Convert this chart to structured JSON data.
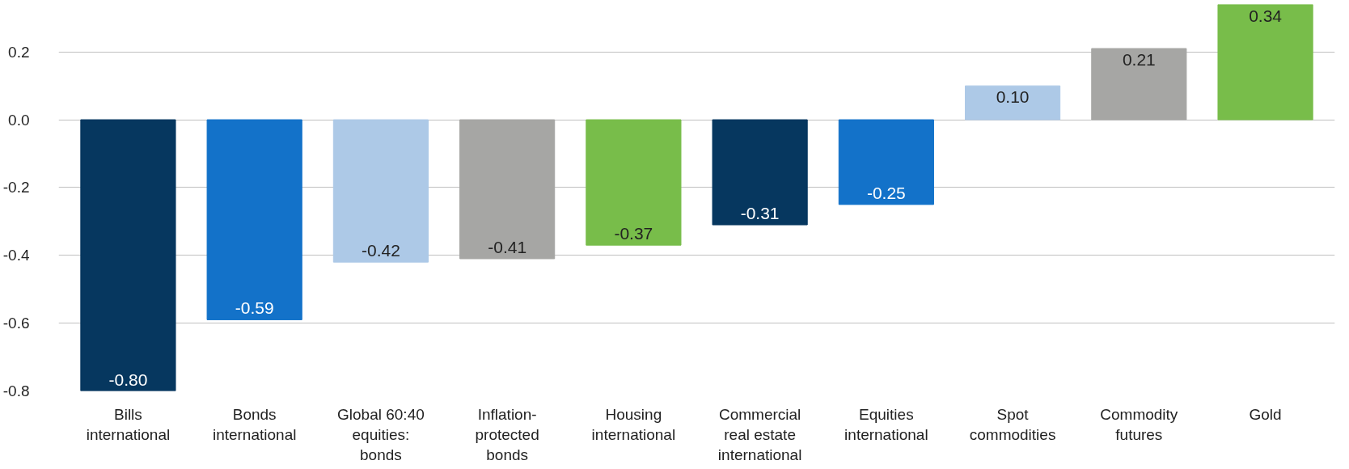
{
  "chart_data": {
    "type": "bar",
    "categories": [
      "Bills international",
      "Bonds international",
      "Global 60:40 equities: bonds",
      "Inflation-protected bonds",
      "Housing international",
      "Commercial real estate international",
      "Equities international",
      "Spot commodities",
      "Commodity futures",
      "Gold"
    ],
    "values": [
      -0.8,
      -0.59,
      -0.42,
      -0.41,
      -0.37,
      -0.31,
      -0.25,
      0.1,
      0.21,
      0.34
    ],
    "colors": [
      "#06375f",
      "#1372c9",
      "#adc9e7",
      "#a6a6a4",
      "#78bd4a",
      "#06375f",
      "#1372c9",
      "#adc9e7",
      "#a6a6a4",
      "#78bd4a"
    ],
    "ylim": [
      -0.8,
      0.34
    ],
    "yticks": [
      {
        "value": -0.8,
        "label": "-0.8"
      },
      {
        "value": -0.6,
        "label": "-0.6"
      },
      {
        "value": -0.4,
        "label": "-0.4"
      },
      {
        "value": -0.2,
        "label": "-0.2"
      },
      {
        "value": 0,
        "label": "0.0"
      },
      {
        "value": 0.2,
        "label": "0.2"
      }
    ],
    "value_labels": [
      "-0.80",
      "-0.59",
      "-0.42",
      "-0.41",
      "-0.37",
      "-0.31",
      "-0.25",
      "0.10",
      "0.21",
      "0.34"
    ],
    "grid": "y"
  }
}
